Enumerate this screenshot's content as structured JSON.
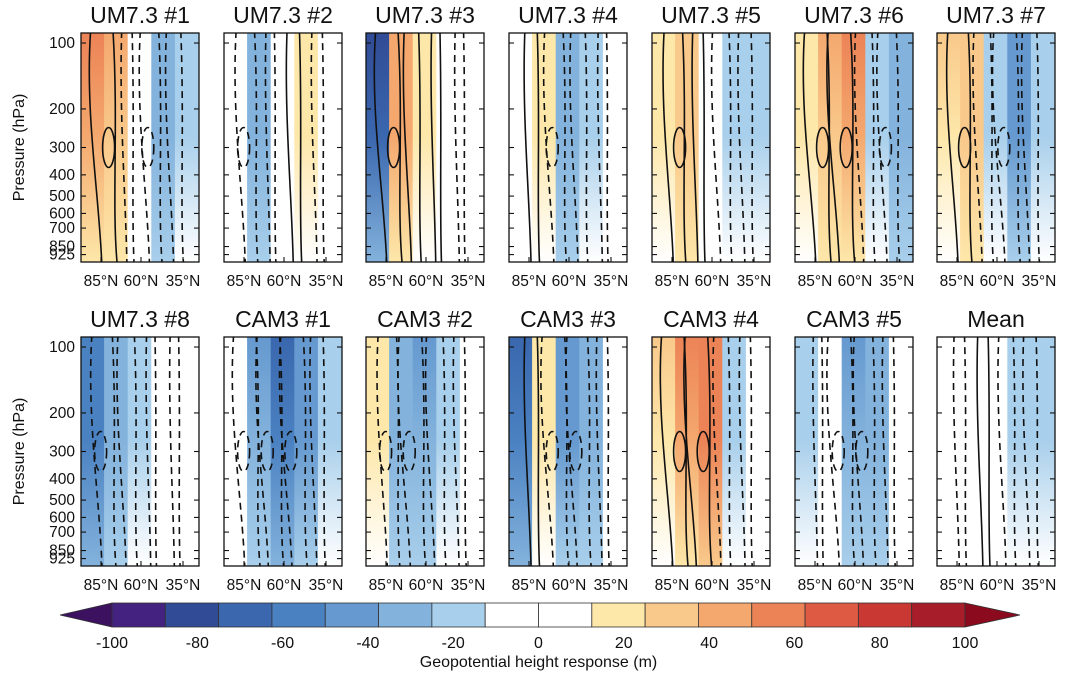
{
  "chart_data": {
    "type": "heatmap",
    "description_units": "Geopotential height response shading (m) with overlaid contours (solid positive, dashed negative)",
    "ylabel": "Pressure (hPa)",
    "pressure_ticks": [
      100,
      200,
      300,
      400,
      500,
      600,
      700,
      850,
      925
    ],
    "latitude_ticks": [
      "85°N",
      "60°N",
      "35°N"
    ],
    "ylim": [
      100,
      1000
    ],
    "colorbar": {
      "label": "Geopotential height response (m)",
      "min": -100,
      "max": 100,
      "step": 10,
      "ticks": [
        -100,
        -80,
        -60,
        -40,
        -20,
        0,
        20,
        40,
        60,
        80,
        100
      ],
      "colors": [
        "#3c1160",
        "#43237f",
        "#314b96",
        "#3a67ae",
        "#4a81c1",
        "#6599cf",
        "#83b2dc",
        "#a8cfeb",
        "#ffffff",
        "#ffffff",
        "#fde7a9",
        "#f9c98b",
        "#f4a86e",
        "#ec8356",
        "#df5a42",
        "#ca3833",
        "#a81d2a",
        "#8b0a1e"
      ]
    },
    "panels": [
      {
        "title": "UM7.3 #1",
        "pattern": [
          55,
          40,
          -10,
          -30,
          -20
        ]
      },
      {
        "title": "UM7.3 #2",
        "pattern": [
          -5,
          -30,
          -5,
          15,
          -10
        ]
      },
      {
        "title": "UM7.3 #3",
        "pattern": [
          -80,
          45,
          20,
          5,
          -5
        ]
      },
      {
        "title": "UM7.3 #4",
        "pattern": [
          -5,
          15,
          -30,
          -20,
          -5
        ]
      },
      {
        "title": "UM7.3 #5",
        "pattern": [
          15,
          30,
          10,
          -25,
          -15
        ]
      },
      {
        "title": "UM7.3 #6",
        "pattern": [
          20,
          40,
          55,
          -25,
          -30
        ]
      },
      {
        "title": "UM7.3 #7",
        "pattern": [
          25,
          35,
          -25,
          -45,
          -20
        ]
      },
      {
        "title": "UM7.3 #8",
        "pattern": [
          -60,
          -35,
          -25,
          -5,
          -5
        ]
      },
      {
        "title": "CAM3 #1",
        "pattern": [
          10,
          -40,
          -70,
          -45,
          -15
        ]
      },
      {
        "title": "CAM3 #2",
        "pattern": [
          20,
          -30,
          -40,
          -25,
          -10
        ]
      },
      {
        "title": "CAM3 #3",
        "pattern": [
          -70,
          15,
          -50,
          -35,
          -10
        ]
      },
      {
        "title": "CAM3 #4",
        "pattern": [
          25,
          50,
          60,
          -20,
          -10
        ]
      },
      {
        "title": "CAM3 #5",
        "pattern": [
          -15,
          -5,
          -40,
          -30,
          -10
        ]
      },
      {
        "title": "Mean",
        "pattern": [
          5,
          -10,
          10,
          -20,
          -15
        ]
      }
    ]
  }
}
